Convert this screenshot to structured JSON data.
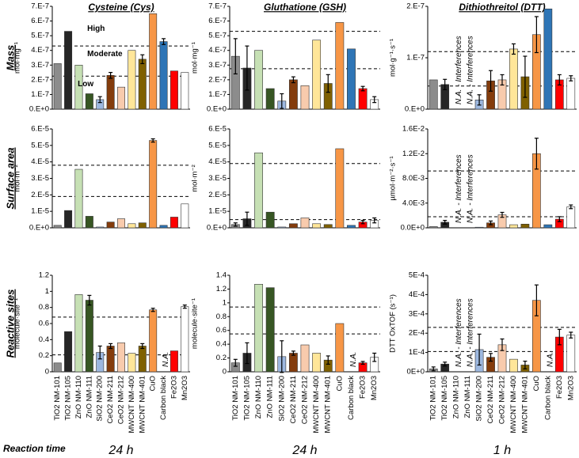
{
  "row_labels": [
    "Mass",
    "Surface area",
    "Reactive sites"
  ],
  "footer": {
    "label": "Reaction time",
    "times": [
      "24 h",
      "24 h",
      "1 h"
    ]
  },
  "bar_colors": [
    "#8c8c8c",
    "#262626",
    "#c6e0b4",
    "#375623",
    "#9db8e0",
    "#843c0c",
    "#f8cbad",
    "#ffe699",
    "#7f6000",
    "#f79646",
    "#2e75b6",
    "#ff0000",
    "#ffffff"
  ],
  "chart_data": [
    {
      "type": "bar",
      "title": "Cysteine (Cys)",
      "ylabel": "mol·mg⁻¹",
      "values": [
        3.1e-07,
        5.3e-07,
        3e-07,
        1.05e-07,
        6.5e-08,
        2.3e-07,
        1.5e-07,
        4e-07,
        3.4e-07,
        6.5e-07,
        4.6e-07,
        2.6e-07,
        2.5e-07
      ],
      "errors": [
        null,
        null,
        null,
        null,
        2e-08,
        2e-08,
        null,
        null,
        3e-08,
        null,
        2e-08,
        null,
        null
      ],
      "thresholds": [
        4.3e-07,
        2.25e-07
      ],
      "annotations": [
        {
          "text": "High"
        },
        {
          "text": "Moderate"
        },
        {
          "text": "Low"
        }
      ],
      "ylim": [
        0,
        7e-07
      ],
      "yticks": [
        {
          "value": 0,
          "label": "0.E+0"
        },
        {
          "value": 1e-07,
          "label": "1.E-7"
        },
        {
          "value": 2e-07,
          "label": "2.E-7"
        },
        {
          "value": 3e-07,
          "label": "3.E-7"
        },
        {
          "value": 4e-07,
          "label": "4.E-7"
        },
        {
          "value": 5e-07,
          "label": "5.E-7"
        },
        {
          "value": 6e-07,
          "label": "6.E-7"
        },
        {
          "value": 7e-07,
          "label": "7.E-7"
        }
      ]
    },
    {
      "type": "bar",
      "title": "Gluthatione (GSH)",
      "ylabel": "mol·mg⁻¹",
      "values": [
        3.6e-07,
        2.8e-07,
        4e-07,
        1.4e-07,
        5.5e-08,
        2e-07,
        1.6e-07,
        4.7e-07,
        1.75e-07,
        5.9e-07,
        4.1e-07,
        1.4e-07,
        6.5e-08
      ],
      "errors": [
        1.2e-07,
        1.5e-07,
        null,
        null,
        5e-08,
        2e-08,
        null,
        null,
        6e-08,
        null,
        null,
        1.5e-08,
        2e-08
      ],
      "thresholds": [
        5.3e-07,
        2.75e-07
      ],
      "ylim": [
        0,
        7e-07
      ],
      "yticks": [
        {
          "value": 0,
          "label": "0.E+0"
        },
        {
          "value": 1e-07,
          "label": "1.E-7"
        },
        {
          "value": 2e-07,
          "label": "2.E-7"
        },
        {
          "value": 3e-07,
          "label": "3.E-7"
        },
        {
          "value": 4e-07,
          "label": "4.E-7"
        },
        {
          "value": 5e-07,
          "label": "5.E-7"
        },
        {
          "value": 6e-07,
          "label": "6.E-7"
        },
        {
          "value": 7e-07,
          "label": "7.E-7"
        }
      ]
    },
    {
      "type": "bar",
      "title": "Dithiothreitol (DTT)",
      "ylabel": "mol·g⁻¹·s⁻¹",
      "values": [
        5.7e-08,
        4.8e-08,
        null,
        null,
        1.8e-08,
        5.5e-08,
        5.7e-08,
        1.17e-07,
        6.3e-08,
        1.45e-07,
        1.95e-07,
        5.7e-08,
        6e-08
      ],
      "errors": [
        null,
        1e-08,
        null,
        null,
        1e-08,
        2e-08,
        1e-08,
        1e-08,
        4e-08,
        3.5e-08,
        null,
        1e-08,
        5e-09
      ],
      "thresholds": [
        1.12e-07,
        4.5e-08
      ],
      "annotations": [
        {
          "text": "N.A. - Interferences",
          "index": 2
        },
        {
          "text": "N.A. - Interferences",
          "index": 3
        }
      ],
      "ylim": [
        0,
        2e-07
      ],
      "yticks": [
        {
          "value": 0,
          "label": "0.E+0"
        },
        {
          "value": 1e-07,
          "label": "1.E-7"
        },
        {
          "value": 2e-07,
          "label": "2.E-7"
        }
      ]
    },
    {
      "type": "bar",
      "ylabel": "mol·m⁻²",
      "values": [
        1.5e-06,
        1.05e-05,
        3.55e-05,
        7e-06,
        5e-07,
        3.5e-06,
        5.5e-06,
        2.5e-06,
        3e-06,
        5.3e-05,
        1.5e-06,
        6.5e-06,
        1.45e-05
      ],
      "errors": [
        null,
        null,
        null,
        null,
        null,
        null,
        null,
        null,
        null,
        1e-06,
        null,
        null,
        null
      ],
      "thresholds": [
        3.8e-05,
        1.9e-05
      ],
      "ylim": [
        0,
        6e-05
      ],
      "yticks": [
        {
          "value": 0,
          "label": "0.E+0"
        },
        {
          "value": 1e-05,
          "label": "1.E-5"
        },
        {
          "value": 2e-05,
          "label": "2.E-5"
        },
        {
          "value": 3e-05,
          "label": "3.E-5"
        },
        {
          "value": 4e-05,
          "label": "4.E-5"
        },
        {
          "value": 5e-05,
          "label": "5.E-5"
        },
        {
          "value": 6e-05,
          "label": "6.E-5"
        }
      ]
    },
    {
      "type": "bar",
      "ylabel": "mol·m⁻²",
      "values": [
        2e-06,
        5.5e-06,
        4.55e-05,
        9.5e-06,
        5e-07,
        2.5e-06,
        6e-06,
        2.5e-06,
        2e-06,
        4.8e-05,
        1.5e-06,
        3.5e-06,
        4.5e-06
      ],
      "errors": [
        1e-06,
        4e-06,
        null,
        null,
        null,
        null,
        null,
        null,
        null,
        null,
        null,
        1e-06,
        1.5e-06
      ],
      "thresholds": [
        3.9e-05,
        5e-06
      ],
      "ylim": [
        0,
        6e-05
      ],
      "yticks": [
        {
          "value": 0,
          "label": "0.E+0"
        },
        {
          "value": 1e-05,
          "label": "1.E-5"
        },
        {
          "value": 2e-05,
          "label": "2.E-5"
        },
        {
          "value": 3e-05,
          "label": "3.E-5"
        },
        {
          "value": 4e-05,
          "label": "4.E-5"
        },
        {
          "value": 5e-05,
          "label": "5.E-5"
        },
        {
          "value": 6e-05,
          "label": "6.E-5"
        }
      ]
    },
    {
      "type": "bar",
      "ylabel": "µmol·m⁻²·s⁻¹",
      "values": [
        0.0002,
        0.0009,
        null,
        null,
        0.0001,
        0.0008,
        0.0021,
        0.0005,
        0.0006,
        0.012,
        0.0005,
        0.0014,
        0.0034
      ],
      "errors": [
        null,
        0.0003,
        null,
        null,
        null,
        0.0003,
        0.0004,
        null,
        null,
        0.0025,
        null,
        0.0004,
        0.0003
      ],
      "thresholds": [
        0.0092,
        0.0018
      ],
      "annotations": [
        {
          "text": "N.A. - Interferences",
          "index": 2
        },
        {
          "text": "N.A. - Interferences",
          "index": 3
        }
      ],
      "ylim": [
        0,
        0.016
      ],
      "yticks": [
        {
          "value": 0,
          "label": "0.0E+0"
        },
        {
          "value": 0.004,
          "label": "4.0E-3"
        },
        {
          "value": 0.008,
          "label": "8.0E-3"
        },
        {
          "value": 0.012,
          "label": "1.2E-2"
        },
        {
          "value": 0.016,
          "label": "1.6E-2"
        }
      ]
    },
    {
      "type": "bar",
      "ylabel": "molecule·site⁻¹",
      "categories": [
        "TiO2 NM-101",
        "TiO2 NM-105",
        "ZnO NM-110",
        "ZnO NM-111",
        "SiO2 NM-200",
        "CeO2 NM-211",
        "CeO2 NM-212",
        "MWCNT NM-400",
        "MWCNT NM-401",
        "CuO",
        "Carbon black",
        "Fe2O3",
        "Mn2O3"
      ],
      "values": [
        0.11,
        0.5,
        0.96,
        0.89,
        0.24,
        0.32,
        0.36,
        0.23,
        0.32,
        0.77,
        null,
        0.26,
        0.81
      ],
      "errors": [
        null,
        null,
        null,
        0.06,
        0.08,
        0.03,
        null,
        null,
        0.03,
        0.02,
        null,
        null,
        0.02
      ],
      "thresholds": [
        0.68,
        0.21
      ],
      "annotations": [
        {
          "text": "N.A.",
          "index": 10
        }
      ],
      "ylim": [
        0,
        1.2
      ],
      "yticks": [
        0,
        0.2,
        0.4,
        0.6,
        0.8,
        1,
        1.2
      ]
    },
    {
      "type": "bar",
      "ylabel": "molecule·site⁻¹",
      "categories": [
        "TiO2 NM-101",
        "TiO2 NM-105",
        "ZnO NM-110",
        "ZnO NM-111",
        "SiO2 NM-200",
        "CeO2 NM-211",
        "CeO2 NM-212",
        "MWCNT NM-400",
        "MWCNT NM-401",
        "CuO",
        "Carbon black",
        "Fe2O3",
        "Mn2O3"
      ],
      "values": [
        0.13,
        0.27,
        1.27,
        1.22,
        0.22,
        0.27,
        0.39,
        0.27,
        0.17,
        0.7,
        null,
        0.13,
        0.21
      ],
      "errors": [
        0.05,
        0.15,
        null,
        null,
        0.23,
        0.03,
        null,
        null,
        0.06,
        null,
        null,
        0.02,
        0.06
      ],
      "thresholds": [
        0.94,
        0.55
      ],
      "annotations": [
        {
          "text": "N.A.",
          "index": 10
        }
      ],
      "ylim": [
        0,
        1.4
      ],
      "yticks": [
        0,
        0.2,
        0.4,
        0.6,
        0.8,
        1,
        1.2,
        1.4
      ]
    },
    {
      "type": "bar",
      "ylabel": "DTT OxTOF (s⁻¹)",
      "categories": [
        "TiO2 NM-101",
        "TiO2 NM-105",
        "ZnO NM-110",
        "ZnO NM-111",
        "SiO2 NM-200",
        "CeO2 NM-211",
        "CeO2 NM-212",
        "MWCNT NM-400",
        "MWCNT NM-401",
        "CuO",
        "Carbon black",
        "Fe2O3",
        "Mn2O3"
      ],
      "values": [
        1.5e-05,
        4e-05,
        null,
        null,
        0.000115,
        7.5e-05,
        0.00014,
        6.5e-05,
        3.5e-05,
        0.00037,
        null,
        0.00018,
        0.00019
      ],
      "errors": [
        1e-05,
        1e-05,
        null,
        null,
        8e-05,
        2e-05,
        3e-05,
        null,
        2e-05,
        8e-05,
        null,
        4e-05,
        1.5e-05
      ],
      "thresholds": [
        0.00023,
        0.000105
      ],
      "annotations": [
        {
          "text": "N.A. - Interferences",
          "index": 2
        },
        {
          "text": "N.A. - Interferences",
          "index": 3
        },
        {
          "text": "N.A.",
          "index": 10
        }
      ],
      "ylim": [
        0,
        0.0005
      ],
      "yticks": [
        {
          "value": 0,
          "label": "0E+0"
        },
        {
          "value": 0.0001,
          "label": "1E-4"
        },
        {
          "value": 0.0002,
          "label": "2E-4"
        },
        {
          "value": 0.0003,
          "label": "3E-4"
        },
        {
          "value": 0.0004,
          "label": "4E-4"
        },
        {
          "value": 0.0005,
          "label": "5E-4"
        }
      ]
    }
  ]
}
